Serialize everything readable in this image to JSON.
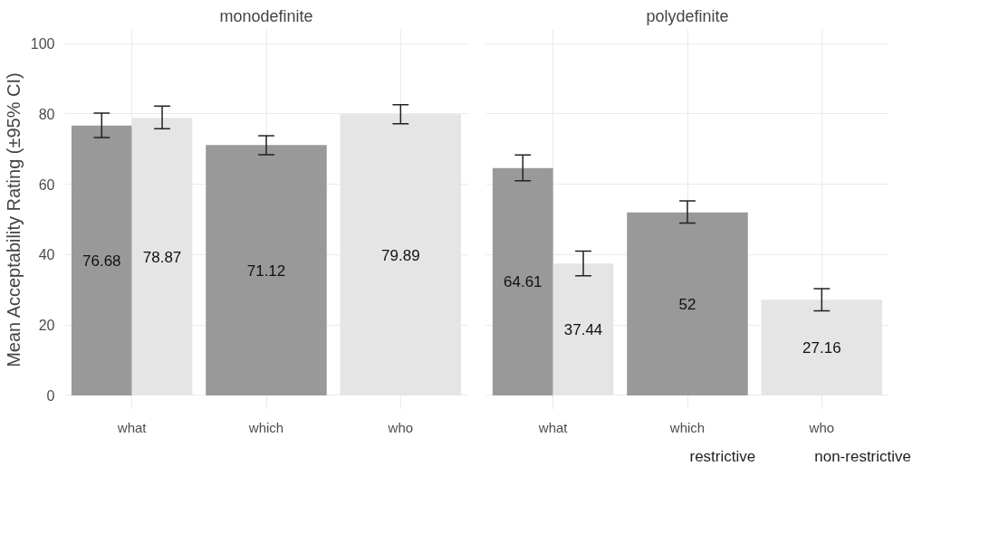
{
  "chart_data": [
    {
      "type": "bar",
      "title": "monodefinite",
      "ylabel": "Mean Acceptability Rating (±95% CI)",
      "categories": [
        "what",
        "which",
        "who"
      ],
      "ylim": [
        -4,
        104
      ],
      "yticks": [
        0,
        20,
        40,
        60,
        80,
        100
      ],
      "grid": true,
      "data_labels": true,
      "series": [
        {
          "color": "#999999",
          "values": [
            76.68,
            71.12,
            null
          ],
          "errors": [
            [
              73.3,
              80.2
            ],
            [
              68.4,
              73.8
            ],
            null
          ]
        },
        {
          "color": "#e5e5e5",
          "values": [
            78.87,
            null,
            79.89
          ],
          "errors": [
            [
              75.8,
              82.2
            ],
            null,
            [
              77.2,
              82.6
            ]
          ]
        }
      ]
    },
    {
      "type": "bar",
      "title": "polydefinite",
      "categories": [
        "what",
        "which",
        "who"
      ],
      "ylim": [
        -4,
        104
      ],
      "yticks": [
        0,
        20,
        40,
        60,
        80,
        100
      ],
      "grid": true,
      "data_labels": true,
      "legend": "bottom right",
      "tick_labels": "x",
      "series": [
        {
          "name": "restrictive",
          "color": "#999999",
          "values": [
            64.61,
            52,
            null
          ],
          "errors": [
            [
              61.0,
              68.3
            ],
            [
              49.0,
              55.3
            ],
            null
          ]
        },
        {
          "name": "non-restrictive",
          "color": "#e5e5e5",
          "values": [
            37.44,
            null,
            27.16
          ],
          "errors": [
            [
              34.0,
              41.0
            ],
            null,
            [
              24.0,
              30.3
            ]
          ]
        }
      ]
    }
  ]
}
